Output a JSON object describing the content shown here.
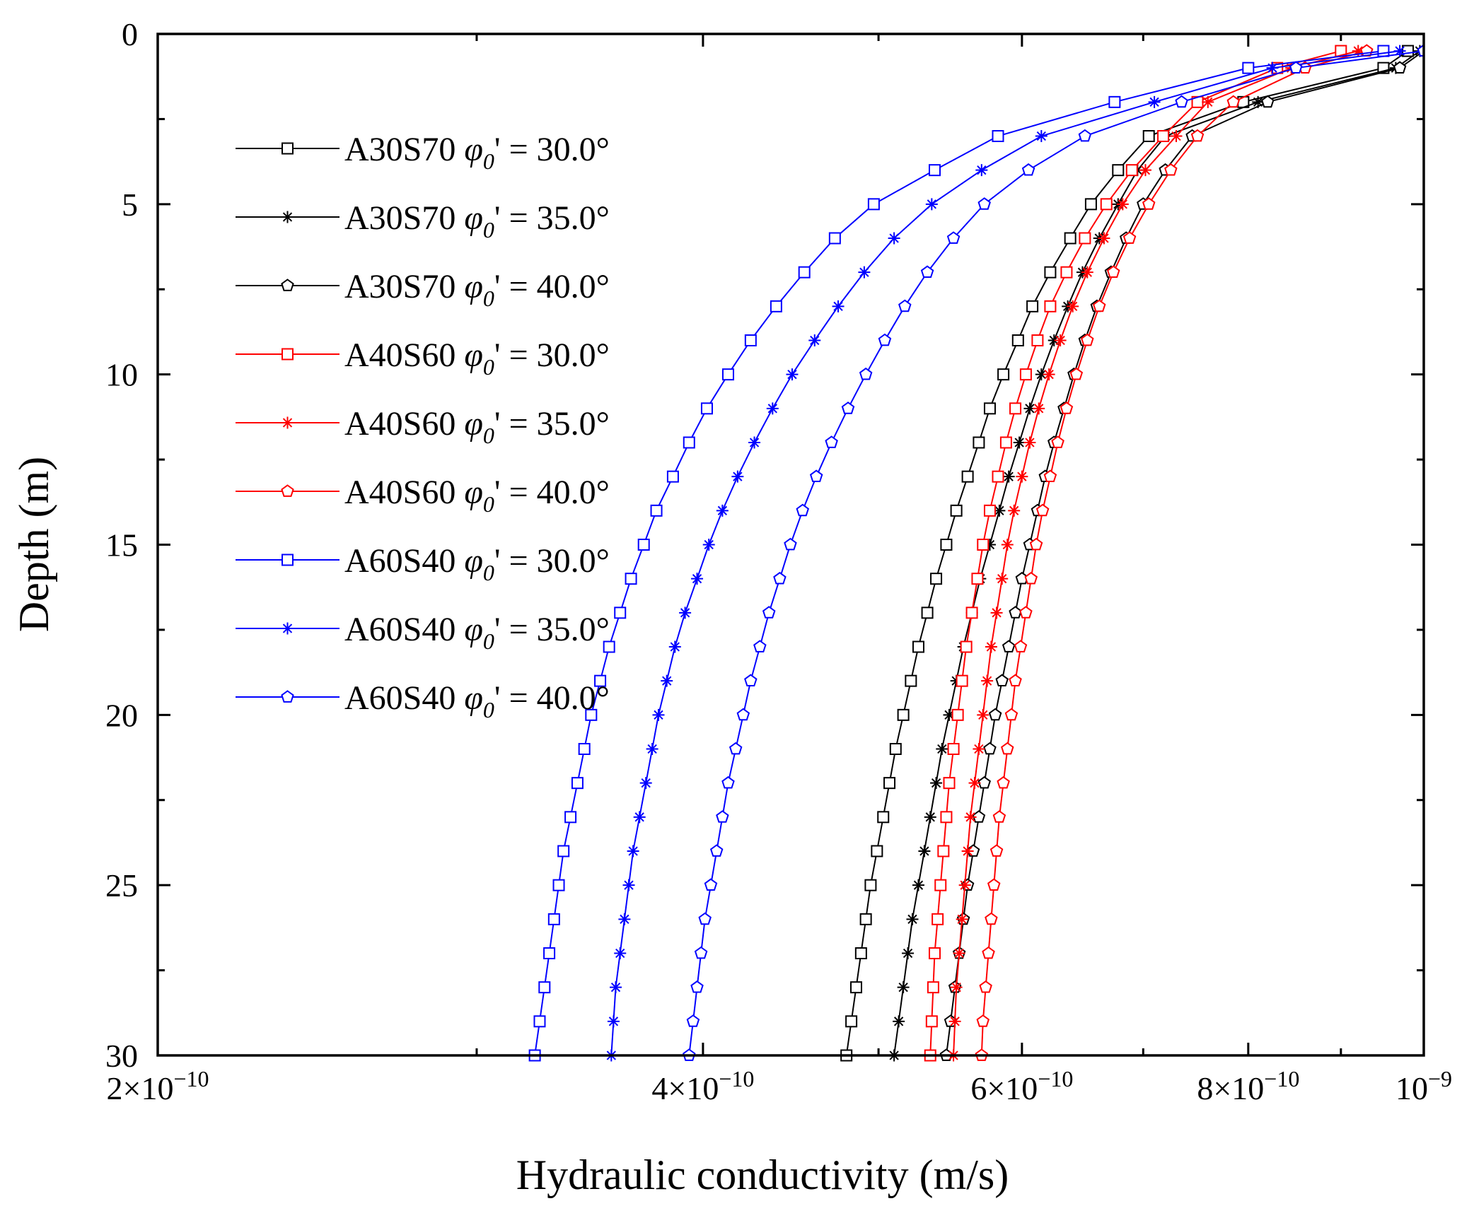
{
  "chart_data": {
    "type": "line",
    "title": "",
    "xlabel": "Hydraulic conductivity (m/s)",
    "ylabel": "Depth (m)",
    "xscale": "log",
    "xlim": [
      2e-10,
      1e-09
    ],
    "ylim": [
      0,
      30
    ],
    "y_inverted": true,
    "x_ticks": [
      {
        "value": 2e-10,
        "mantissa": "2×10",
        "exponent": "−10"
      },
      {
        "value": 4e-10,
        "mantissa": "4×10",
        "exponent": "−10"
      },
      {
        "value": 6e-10,
        "mantissa": "6×10",
        "exponent": "−10"
      },
      {
        "value": 8e-10,
        "mantissa": "8×10",
        "exponent": "−10"
      },
      {
        "value": 1e-09,
        "mantissa": "10",
        "exponent": "−9"
      }
    ],
    "x_minor_ticks": [
      3e-10,
      5e-10,
      7e-10,
      9e-10
    ],
    "y_ticks": [
      0,
      5,
      10,
      15,
      20,
      25,
      30
    ],
    "y_minor_ticks": [
      2.5,
      7.5,
      12.5,
      17.5,
      22.5,
      27.5
    ],
    "legend_position": "top-left",
    "depths": [
      0.5,
      1,
      2,
      3,
      4,
      5,
      6,
      7,
      8,
      9,
      10,
      11,
      12,
      13,
      14,
      15,
      16,
      17,
      18,
      19,
      20,
      21,
      22,
      23,
      24,
      25,
      26,
      27,
      28,
      29,
      30
    ],
    "series": [
      {
        "name": "A30S70",
        "phi": "30.0°",
        "color": "#000000",
        "marker": "square",
        "values": [
          9.8e-10,
          9.5e-10,
          7.95e-10,
          7.05e-10,
          6.78e-10,
          6.55e-10,
          6.38e-10,
          6.22e-10,
          6.08e-10,
          5.97e-10,
          5.86e-10,
          5.76e-10,
          5.68e-10,
          5.6e-10,
          5.52e-10,
          5.45e-10,
          5.38e-10,
          5.32e-10,
          5.26e-10,
          5.21e-10,
          5.16e-10,
          5.11e-10,
          5.07e-10,
          5.03e-10,
          4.99e-10,
          4.95e-10,
          4.92e-10,
          4.89e-10,
          4.86e-10,
          4.83e-10,
          4.8e-10
        ]
      },
      {
        "name": "A30S70",
        "phi": "35.0°",
        "color": "#000000",
        "marker": "asterisk",
        "values": [
          9.95e-10,
          9.65e-10,
          8.1e-10,
          7.2e-10,
          6.95e-10,
          6.78e-10,
          6.62e-10,
          6.48e-10,
          6.36e-10,
          6.25e-10,
          6.15e-10,
          6.06e-10,
          5.98e-10,
          5.9e-10,
          5.83e-10,
          5.76e-10,
          5.69e-10,
          5.63e-10,
          5.57e-10,
          5.52e-10,
          5.47e-10,
          5.42e-10,
          5.38e-10,
          5.34e-10,
          5.3e-10,
          5.26e-10,
          5.22e-10,
          5.19e-10,
          5.16e-10,
          5.13e-10,
          5.1e-10
        ]
      },
      {
        "name": "A30S70",
        "phi": "40.0°",
        "color": "#000000",
        "marker": "pentagon",
        "values": [
          1e-09,
          9.7e-10,
          8.2e-10,
          7.45e-10,
          7.2e-10,
          7e-10,
          6.85e-10,
          6.72e-10,
          6.6e-10,
          6.5e-10,
          6.41e-10,
          6.33e-10,
          6.25e-10,
          6.18e-10,
          6.12e-10,
          6.06e-10,
          6e-10,
          5.95e-10,
          5.9e-10,
          5.85e-10,
          5.8e-10,
          5.76e-10,
          5.72e-10,
          5.68e-10,
          5.64e-10,
          5.6e-10,
          5.57e-10,
          5.54e-10,
          5.51e-10,
          5.48e-10,
          5.45e-10
        ]
      },
      {
        "name": "A40S60",
        "phi": "30.0°",
        "color": "#ff0000",
        "marker": "square",
        "values": [
          9e-10,
          8.3e-10,
          7.5e-10,
          7.18e-10,
          6.9e-10,
          6.68e-10,
          6.5e-10,
          6.35e-10,
          6.22e-10,
          6.12e-10,
          6.03e-10,
          5.95e-10,
          5.88e-10,
          5.82e-10,
          5.76e-10,
          5.71e-10,
          5.67e-10,
          5.63e-10,
          5.59e-10,
          5.56e-10,
          5.53e-10,
          5.5e-10,
          5.47e-10,
          5.45e-10,
          5.43e-10,
          5.41e-10,
          5.39e-10,
          5.37e-10,
          5.36e-10,
          5.35e-10,
          5.34e-10
        ]
      },
      {
        "name": "A40S60",
        "phi": "35.0°",
        "color": "#ff0000",
        "marker": "asterisk",
        "values": [
          9.2e-10,
          8.45e-10,
          7.6e-10,
          7.3e-10,
          7.02e-10,
          6.82e-10,
          6.66e-10,
          6.52e-10,
          6.4e-10,
          6.3e-10,
          6.21e-10,
          6.13e-10,
          6.06e-10,
          6e-10,
          5.94e-10,
          5.89e-10,
          5.85e-10,
          5.81e-10,
          5.77e-10,
          5.74e-10,
          5.71e-10,
          5.68e-10,
          5.65e-10,
          5.62e-10,
          5.6e-10,
          5.58e-10,
          5.56e-10,
          5.54e-10,
          5.52e-10,
          5.51e-10,
          5.5e-10
        ]
      },
      {
        "name": "A40S60",
        "phi": "40.0°",
        "color": "#ff0000",
        "marker": "pentagon",
        "values": [
          9.3e-10,
          8.6e-10,
          7.85e-10,
          7.5e-10,
          7.25e-10,
          7.05e-10,
          6.88e-10,
          6.74e-10,
          6.62e-10,
          6.52e-10,
          6.43e-10,
          6.35e-10,
          6.28e-10,
          6.22e-10,
          6.16e-10,
          6.11e-10,
          6.07e-10,
          6.03e-10,
          5.99e-10,
          5.95e-10,
          5.92e-10,
          5.89e-10,
          5.86e-10,
          5.83e-10,
          5.81e-10,
          5.79e-10,
          5.77e-10,
          5.75e-10,
          5.73e-10,
          5.71e-10,
          5.7e-10
        ]
      },
      {
        "name": "A60S40",
        "phi": "30.0°",
        "color": "#0000ff",
        "marker": "square",
        "values": [
          9.5e-10,
          8e-10,
          6.75e-10,
          5.82e-10,
          5.37e-10,
          4.97e-10,
          4.73e-10,
          4.55e-10,
          4.39e-10,
          4.25e-10,
          4.13e-10,
          4.02e-10,
          3.93e-10,
          3.85e-10,
          3.77e-10,
          3.71e-10,
          3.65e-10,
          3.6e-10,
          3.55e-10,
          3.51e-10,
          3.47e-10,
          3.44e-10,
          3.41e-10,
          3.38e-10,
          3.35e-10,
          3.33e-10,
          3.31e-10,
          3.29e-10,
          3.27e-10,
          3.25e-10,
          3.23e-10
        ]
      },
      {
        "name": "A60S40",
        "phi": "35.0°",
        "color": "#0000ff",
        "marker": "asterisk",
        "values": [
          9.7e-10,
          8.25e-10,
          7.1e-10,
          6.15e-10,
          5.7e-10,
          5.35e-10,
          5.1e-10,
          4.91e-10,
          4.75e-10,
          4.61e-10,
          4.48e-10,
          4.37e-10,
          4.27e-10,
          4.18e-10,
          4.1e-10,
          4.03e-10,
          3.97e-10,
          3.91e-10,
          3.86e-10,
          3.82e-10,
          3.78e-10,
          3.75e-10,
          3.72e-10,
          3.69e-10,
          3.66e-10,
          3.64e-10,
          3.62e-10,
          3.6e-10,
          3.58e-10,
          3.57e-10,
          3.56e-10
        ]
      },
      {
        "name": "A60S40",
        "phi": "40.0°",
        "color": "#0000ff",
        "marker": "pentagon",
        "values": [
          1e-09,
          8.5e-10,
          7.35e-10,
          6.5e-10,
          6.05e-10,
          5.72e-10,
          5.5e-10,
          5.32e-10,
          5.17e-10,
          5.04e-10,
          4.92e-10,
          4.81e-10,
          4.71e-10,
          4.62e-10,
          4.54e-10,
          4.47e-10,
          4.41e-10,
          4.35e-10,
          4.3e-10,
          4.25e-10,
          4.21e-10,
          4.17e-10,
          4.13e-10,
          4.1e-10,
          4.07e-10,
          4.04e-10,
          4.01e-10,
          3.99e-10,
          3.97e-10,
          3.95e-10,
          3.93e-10
        ]
      }
    ]
  }
}
